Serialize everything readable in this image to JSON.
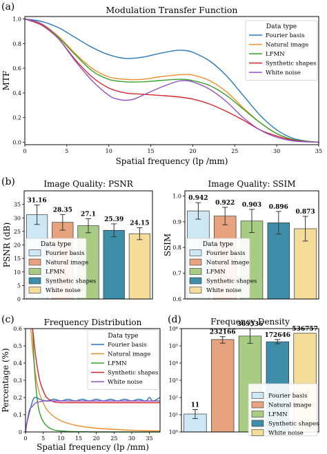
{
  "palette": {
    "fourier": "#2a77b8",
    "natural": "#f08c2b",
    "lfmn": "#36a02c",
    "synthetic": "#d4262d",
    "white": "#9251c2",
    "bar_fourier": "#cde8f4",
    "bar_natural": "#e7a27e",
    "bar_lfmn": "#a9cc85",
    "bar_synthetic": "#3e8eaa",
    "bar_white": "#f4dc9a"
  },
  "panels": {
    "a": "(a)",
    "b": "(b)",
    "c": "(c)",
    "d": "(d)"
  },
  "chart_data": [
    {
      "id": "mtf",
      "type": "line",
      "title": "Modulation Transfer Function",
      "xlabel": "Spatial frequency (lp /mm)",
      "ylabel": "MTF",
      "xlim": [
        0,
        35
      ],
      "ylim": [
        -0.02,
        1.02
      ],
      "xticks": [
        "0",
        "5",
        "10",
        "15",
        "20",
        "25",
        "30",
        "35"
      ],
      "yticks": [
        "0.0",
        "0.2",
        "0.4",
        "0.6",
        "0.8",
        "1.0"
      ],
      "legend_title": "Data type",
      "legend_position": "top-right",
      "series": [
        {
          "name": "Fourier basis",
          "color_key": "fourier",
          "x": [
            0,
            2,
            4,
            6,
            8,
            10,
            12,
            14,
            16,
            18,
            19,
            20,
            22,
            24,
            26,
            28,
            30,
            32,
            34,
            35
          ],
          "y": [
            1.0,
            0.98,
            0.93,
            0.85,
            0.77,
            0.71,
            0.68,
            0.69,
            0.72,
            0.745,
            0.745,
            0.73,
            0.66,
            0.54,
            0.38,
            0.22,
            0.1,
            0.03,
            0.005,
            0.0
          ]
        },
        {
          "name": "Natural image",
          "color_key": "natural",
          "x": [
            0,
            2,
            4,
            6,
            8,
            10,
            12,
            14,
            16,
            18,
            19,
            20,
            22,
            24,
            26,
            28,
            30,
            32,
            34,
            35
          ],
          "y": [
            1.0,
            0.96,
            0.86,
            0.72,
            0.6,
            0.53,
            0.51,
            0.51,
            0.53,
            0.545,
            0.55,
            0.545,
            0.5,
            0.41,
            0.28,
            0.16,
            0.07,
            0.02,
            0.005,
            0.0
          ]
        },
        {
          "name": "LFMN",
          "color_key": "lfmn",
          "x": [
            0,
            2,
            4,
            6,
            8,
            10,
            12,
            14,
            16,
            18,
            19,
            20,
            22,
            24,
            26,
            28,
            30,
            32,
            34,
            35
          ],
          "y": [
            1.0,
            0.96,
            0.85,
            0.71,
            0.58,
            0.51,
            0.49,
            0.49,
            0.5,
            0.51,
            0.51,
            0.5,
            0.46,
            0.38,
            0.27,
            0.16,
            0.07,
            0.02,
            0.005,
            0.0
          ]
        },
        {
          "name": "Synthetic shapes",
          "color_key": "synthetic",
          "x": [
            0,
            2,
            4,
            6,
            8,
            10,
            12,
            14,
            16,
            18,
            20,
            22,
            24,
            26,
            28,
            30,
            32,
            34,
            35
          ],
          "y": [
            1.0,
            0.95,
            0.84,
            0.67,
            0.53,
            0.44,
            0.4,
            0.39,
            0.38,
            0.37,
            0.35,
            0.31,
            0.25,
            0.18,
            0.1,
            0.05,
            0.015,
            0.003,
            0.0
          ]
        },
        {
          "name": "White noise",
          "color_key": "white",
          "x": [
            0,
            2,
            4,
            6,
            8,
            10,
            11,
            12,
            13,
            14,
            16,
            18,
            19,
            20,
            22,
            24,
            26,
            28,
            30,
            32,
            34,
            35
          ],
          "y": [
            1.0,
            0.96,
            0.84,
            0.66,
            0.5,
            0.38,
            0.35,
            0.34,
            0.35,
            0.38,
            0.44,
            0.49,
            0.5,
            0.49,
            0.43,
            0.33,
            0.2,
            0.1,
            0.04,
            0.01,
            0.002,
            0.0
          ]
        }
      ]
    },
    {
      "id": "psnr",
      "type": "bar",
      "title": "Image Quality: PSNR",
      "ylabel": "PSNR (dB)",
      "ylim": [
        0,
        40
      ],
      "yticks": [
        "0",
        "5",
        "10",
        "15",
        "20",
        "25",
        "30",
        "35"
      ],
      "categories": [
        "Fourier basis",
        "Natural image",
        "LFMN",
        "Synthetic shapes",
        "White noise"
      ],
      "values": [
        31.16,
        28.35,
        27.1,
        25.39,
        24.15
      ],
      "value_labels": [
        "31.16",
        "28.35",
        "27.1",
        "25.39",
        "24.15"
      ],
      "errors": [
        3.6,
        2.9,
        2.6,
        2.4,
        2.2
      ],
      "color_keys": [
        "bar_fourier",
        "bar_natural",
        "bar_lfmn",
        "bar_synthetic",
        "bar_white"
      ],
      "legend_title": "Data type",
      "legend_position": "bottom-left"
    },
    {
      "id": "ssim",
      "type": "bar",
      "title": "Image Quality: SSIM",
      "ylabel": "SSIM",
      "ylim": [
        0.6,
        1.02
      ],
      "yticks": [
        "0.6",
        "0.7",
        "0.8",
        "0.9",
        "1.0"
      ],
      "categories": [
        "Fourier basis",
        "Natural image",
        "LFMN",
        "Synthetic shapes",
        "White noise"
      ],
      "values": [
        0.942,
        0.922,
        0.903,
        0.896,
        0.873
      ],
      "value_labels": [
        "0.942",
        "0.922",
        "0.903",
        "0.896",
        "0.873"
      ],
      "errors": [
        0.032,
        0.034,
        0.045,
        0.044,
        0.048
      ],
      "color_keys": [
        "bar_fourier",
        "bar_natural",
        "bar_lfmn",
        "bar_synthetic",
        "bar_white"
      ],
      "legend_title": "Data type",
      "legend_position": "bottom-left"
    },
    {
      "id": "freqdist",
      "type": "line",
      "title": "Frequency Distribution",
      "xlabel": "Spatial frequency (lp /mm)",
      "ylabel": "Percentage (%)",
      "xlim": [
        0,
        38
      ],
      "ylim": [
        0,
        0.6
      ],
      "xticks": [
        "0",
        "5",
        "10",
        "15",
        "20",
        "25",
        "30",
        "35"
      ],
      "yticks": [
        "0",
        "0.1",
        "0.2",
        "0.3",
        "0.4",
        "0.5",
        "0.6"
      ],
      "legend_title": "Data type",
      "legend_position": "top-right",
      "series": [
        {
          "name": "Fourier basis",
          "color_key": "fourier",
          "x": [
            0,
            2,
            3,
            4,
            6,
            8,
            10,
            12,
            14,
            16,
            18,
            20,
            22,
            24,
            26,
            28,
            30,
            32,
            34,
            35,
            36,
            38
          ],
          "y": [
            0.02,
            0.18,
            0.2,
            0.19,
            0.18,
            0.19,
            0.18,
            0.19,
            0.18,
            0.19,
            0.18,
            0.19,
            0.18,
            0.19,
            0.18,
            0.19,
            0.18,
            0.19,
            0.18,
            0.2,
            0.18,
            0.2
          ]
        },
        {
          "name": "Natural image",
          "color_key": "natural",
          "x": [
            1.5,
            2,
            3,
            4,
            5,
            6,
            8,
            10,
            12,
            15,
            20,
            25,
            30,
            35,
            38
          ],
          "y": [
            0.6,
            0.48,
            0.31,
            0.22,
            0.17,
            0.13,
            0.09,
            0.065,
            0.05,
            0.035,
            0.022,
            0.015,
            0.01,
            0.007,
            0.006
          ]
        },
        {
          "name": "LFMN",
          "color_key": "lfmn",
          "x": [
            2,
            2.5,
            3,
            3.5,
            4,
            5,
            6,
            7,
            8,
            9,
            10,
            12,
            14,
            16,
            20,
            25,
            30,
            38
          ],
          "y": [
            0.6,
            0.38,
            0.25,
            0.16,
            0.11,
            0.06,
            0.035,
            0.02,
            0.012,
            0.008,
            0.006,
            0.003,
            0.002,
            0.001,
            0.0,
            0.0,
            0.0,
            0.0
          ]
        },
        {
          "name": "Synthetic shapes",
          "color_key": "synthetic",
          "x": [
            2,
            3,
            4,
            5,
            6,
            8,
            10,
            12,
            15,
            20,
            25,
            30,
            35,
            38
          ],
          "y": [
            0.6,
            0.42,
            0.3,
            0.24,
            0.2,
            0.175,
            0.17,
            0.17,
            0.17,
            0.17,
            0.17,
            0.17,
            0.17,
            0.17
          ]
        },
        {
          "name": "White noise",
          "color_key": "white",
          "x": [
            0,
            1,
            2,
            3,
            4,
            5,
            6,
            8,
            10,
            15,
            20,
            25,
            30,
            35,
            38
          ],
          "y": [
            0.0,
            0.12,
            0.15,
            0.17,
            0.175,
            0.18,
            0.18,
            0.18,
            0.18,
            0.18,
            0.18,
            0.18,
            0.18,
            0.18,
            0.18
          ]
        }
      ]
    },
    {
      "id": "freqdensity",
      "type": "bar",
      "title": "Frequency Density",
      "yscale": "log",
      "ylim": [
        1,
        1000000
      ],
      "yticks": [
        "10⁰",
        "10¹",
        "10²",
        "10³",
        "10⁴",
        "10⁵",
        "10⁶"
      ],
      "categories": [
        "Fourier basis",
        "Natural image",
        "LFMN",
        "Synthetic shapes",
        "White noise"
      ],
      "values": [
        11,
        232166,
        369536,
        172646,
        536757
      ],
      "value_labels": [
        "11",
        "232166",
        "369536",
        "172646",
        "536757"
      ],
      "errors_low": [
        5,
        90000,
        230000,
        40000,
        0
      ],
      "errors_high": [
        9,
        110000,
        1200000,
        60000,
        0
      ],
      "color_keys": [
        "bar_fourier",
        "bar_natural",
        "bar_lfmn",
        "bar_synthetic",
        "bar_white"
      ],
      "legend_position": "bottom-right"
    }
  ]
}
